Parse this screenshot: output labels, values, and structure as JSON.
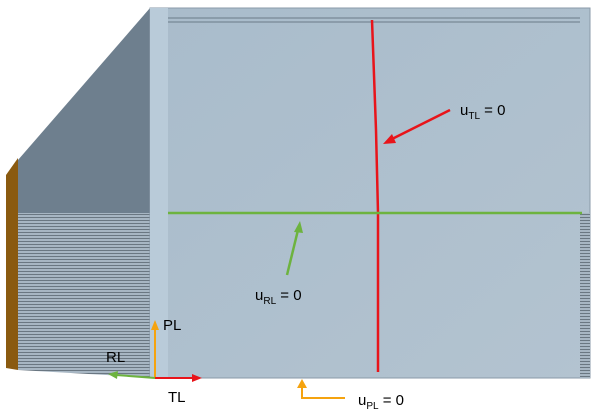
{
  "labels": [
    {
      "symbol": "u",
      "sub": "TL",
      "rest": " = 0"
    },
    {
      "symbol": "u",
      "sub": "RL",
      "rest": " = 0"
    },
    {
      "symbol": "u",
      "sub": "PL",
      "rest": " = 0"
    }
  ],
  "axes": {
    "vertical": "PL",
    "depth": "RL",
    "horizontal": "TL"
  }
}
